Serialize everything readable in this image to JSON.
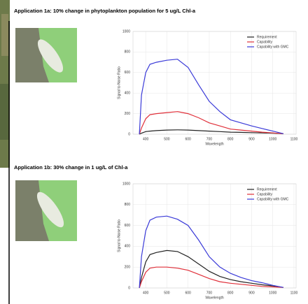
{
  "chart_data": [
    {
      "type": "line",
      "title": "Application 1a: 10% change in phytoplankton population for 5 ug/L Chl-a",
      "x_label": "Wavelength",
      "y_label": "Signal to Noise Ratio",
      "x": [
        370,
        380,
        400,
        420,
        450,
        500,
        550,
        600,
        650,
        700,
        750,
        800,
        850,
        900,
        950,
        1000,
        1050
      ],
      "series": [
        {
          "name": "Requirement",
          "color": "#222222",
          "values": [
            0,
            10,
            25,
            30,
            35,
            40,
            42,
            40,
            35,
            30,
            25,
            20,
            18,
            15,
            12,
            10,
            5
          ]
        },
        {
          "name": "Capability",
          "color": "#e0303a",
          "values": [
            0,
            60,
            150,
            190,
            200,
            210,
            220,
            200,
            160,
            110,
            80,
            50,
            40,
            30,
            20,
            12,
            5
          ]
        },
        {
          "name": "Capability with GMC",
          "color": "#3a3ad8",
          "values": [
            0,
            380,
            600,
            680,
            700,
            720,
            730,
            650,
            480,
            320,
            220,
            140,
            110,
            80,
            55,
            30,
            5
          ]
        }
      ],
      "xlim": [
        340,
        1110
      ],
      "xticks": [
        400,
        500,
        600,
        700,
        800,
        900,
        1000,
        1100
      ],
      "ylim": [
        0,
        1000
      ],
      "yticks": [
        0,
        200,
        400,
        600,
        800,
        1000
      ],
      "grid": true,
      "legend": "upper right"
    },
    {
      "type": "line",
      "title": "Application 1b: 30% change in 1 ug/L of Chl-a",
      "x_label": "Wavelength",
      "y_label": "Signal to Noise Ratio",
      "x": [
        370,
        380,
        400,
        420,
        450,
        500,
        550,
        600,
        650,
        700,
        750,
        800,
        850,
        900,
        950,
        1000,
        1050
      ],
      "series": [
        {
          "name": "Requirement",
          "color": "#222222",
          "values": [
            0,
            100,
            250,
            320,
            340,
            360,
            350,
            300,
            230,
            160,
            110,
            80,
            60,
            45,
            30,
            20,
            5
          ]
        },
        {
          "name": "Capability",
          "color": "#e0303a",
          "values": [
            0,
            60,
            150,
            190,
            200,
            200,
            190,
            170,
            130,
            90,
            60,
            45,
            35,
            25,
            15,
            10,
            5
          ]
        },
        {
          "name": "Capability with GMC",
          "color": "#3a3ad8",
          "values": [
            0,
            300,
            550,
            650,
            680,
            690,
            660,
            600,
            460,
            300,
            200,
            140,
            100,
            70,
            50,
            25,
            5
          ]
        }
      ],
      "xlim": [
        340,
        1110
      ],
      "xticks": [
        400,
        500,
        600,
        700,
        800,
        900,
        1000,
        1100
      ],
      "ylim": [
        0,
        1000
      ],
      "yticks": [
        0,
        200,
        400,
        600,
        800,
        1000
      ],
      "grid": true,
      "legend": "upper right"
    }
  ]
}
